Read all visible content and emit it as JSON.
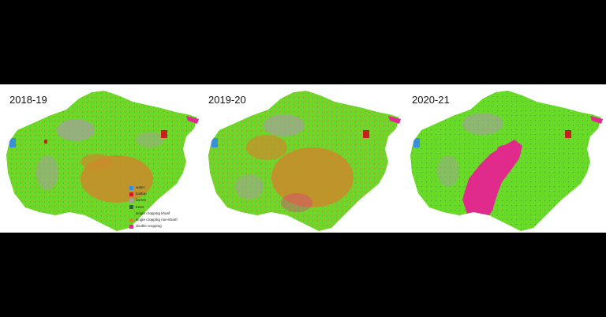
{
  "figure": {
    "maps": [
      {
        "year": "2018-19",
        "variant": "a"
      },
      {
        "year": "2019-20",
        "variant": "b"
      },
      {
        "year": "2020-21",
        "variant": "c"
      }
    ],
    "legend": [
      {
        "label": "water",
        "color": "#3b8fd6"
      },
      {
        "label": "builtup",
        "color": "#c81e1e"
      },
      {
        "label": "barren",
        "color": "#a3a39a"
      },
      {
        "label": "trees",
        "color": "#2d6a2d"
      },
      {
        "label": "single cropping kharif",
        "color": "#66dd22"
      },
      {
        "label": "single cropping non-kharif",
        "color": "#cc8a2c"
      },
      {
        "label": "double cropping",
        "color": "#e02a8c"
      }
    ]
  }
}
